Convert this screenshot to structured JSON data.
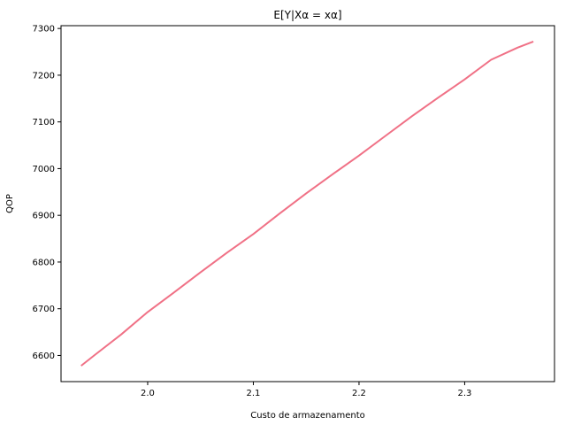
{
  "chart_data": {
    "type": "line",
    "title": "E[Y|Xα = xα]",
    "xlabel": "Custo de armazenamento",
    "ylabel": "QOP",
    "xlim": [
      1.918,
      2.385
    ],
    "ylim": [
      6544,
      7306
    ],
    "xticks": [
      2.0,
      2.1,
      2.2,
      2.3
    ],
    "xtick_labels": [
      "2.0",
      "2.1",
      "2.2",
      "2.3"
    ],
    "yticks": [
      6600,
      6700,
      6800,
      6900,
      7000,
      7100,
      7200,
      7300
    ],
    "ytick_labels": [
      "6600",
      "6700",
      "6800",
      "6900",
      "7000",
      "7100",
      "7200",
      "7300"
    ],
    "grid": false,
    "legend": "none",
    "series": [
      {
        "color": "#f07186",
        "x": [
          1.937,
          1.95,
          1.975,
          2.0,
          2.025,
          2.05,
          2.075,
          2.1,
          2.125,
          2.15,
          2.175,
          2.2,
          2.225,
          2.25,
          2.275,
          2.3,
          2.325,
          2.35,
          2.365
        ],
        "y": [
          6578,
          6601,
          6645,
          6693,
          6735,
          6778,
          6820,
          6860,
          6904,
          6947,
          6988,
          7028,
          7070,
          7112,
          7152,
          7191,
          7233,
          7259,
          7272
        ]
      }
    ]
  }
}
